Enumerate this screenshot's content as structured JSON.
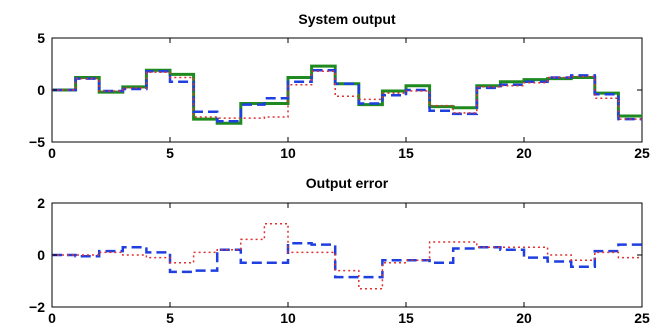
{
  "chart_data": [
    {
      "type": "line",
      "title": "System output",
      "xlim": [
        0,
        25
      ],
      "ylim": [
        -5,
        5
      ],
      "xticks": [
        0,
        5,
        10,
        15,
        20,
        25
      ],
      "yticks": [
        -5,
        0,
        5
      ],
      "xtick_labels": [
        "0",
        "5",
        "10",
        "15",
        "20",
        "25"
      ],
      "ytick_labels": [
        "−5",
        "0",
        "5"
      ],
      "grid": false,
      "step_width": 1,
      "series": [
        {
          "color": "#1f8a1f",
          "style": "solid",
          "values": [
            0.0,
            1.2,
            -0.2,
            0.3,
            1.9,
            1.5,
            -2.8,
            -3.2,
            -1.3,
            -1.3,
            1.2,
            2.3,
            0.6,
            -1.4,
            -0.1,
            0.4,
            -1.6,
            -1.7,
            0.4,
            0.8,
            1.0,
            1.1,
            1.2,
            -0.3,
            -2.5
          ]
        },
        {
          "color": "#1f3fe0",
          "style": "dashed",
          "values": [
            0.0,
            1.1,
            -0.1,
            0.1,
            1.8,
            0.8,
            -2.1,
            -3.0,
            -1.4,
            -0.8,
            0.8,
            1.9,
            0.6,
            -1.3,
            -0.5,
            0.0,
            -2.0,
            -2.3,
            0.2,
            0.5,
            0.8,
            1.2,
            1.4,
            -0.4,
            -2.8
          ]
        },
        {
          "color": "#e03030",
          "style": "dotted",
          "values": [
            0.0,
            1.1,
            -0.1,
            0.2,
            1.7,
            1.2,
            -2.6,
            -2.7,
            -2.7,
            -2.6,
            0.5,
            1.8,
            -0.6,
            -0.9,
            -0.3,
            -0.1,
            -1.5,
            -2.2,
            0.3,
            0.4,
            0.7,
            1.2,
            1.3,
            -0.8,
            -2.8
          ]
        }
      ]
    },
    {
      "type": "line",
      "title": "Output error",
      "xlim": [
        0,
        25
      ],
      "ylim": [
        -2,
        2
      ],
      "xticks": [
        0,
        5,
        10,
        15,
        20,
        25
      ],
      "yticks": [
        -2,
        0,
        2
      ],
      "xtick_labels": [
        "0",
        "5",
        "10",
        "15",
        "20",
        "25"
      ],
      "ytick_labels": [
        "−2",
        "0",
        "2"
      ],
      "grid": false,
      "step_width": 1,
      "series": [
        {
          "color": "#1f3fe0",
          "style": "dashed",
          "values": [
            0.0,
            -0.05,
            0.15,
            0.3,
            0.1,
            -0.65,
            -0.6,
            0.2,
            -0.3,
            -0.3,
            0.45,
            0.4,
            -0.85,
            -0.85,
            -0.2,
            -0.2,
            -0.3,
            0.25,
            0.3,
            0.2,
            -0.1,
            -0.25,
            -0.45,
            0.15,
            0.4
          ]
        },
        {
          "color": "#e03030",
          "style": "dotted",
          "values": [
            0.0,
            0.0,
            0.1,
            0.0,
            -0.1,
            -0.3,
            0.1,
            0.2,
            0.6,
            1.2,
            0.1,
            0.1,
            -0.6,
            -1.3,
            -0.3,
            -0.2,
            0.5,
            0.5,
            0.3,
            0.3,
            0.3,
            0.0,
            -0.2,
            0.1,
            -0.1
          ]
        }
      ]
    }
  ]
}
